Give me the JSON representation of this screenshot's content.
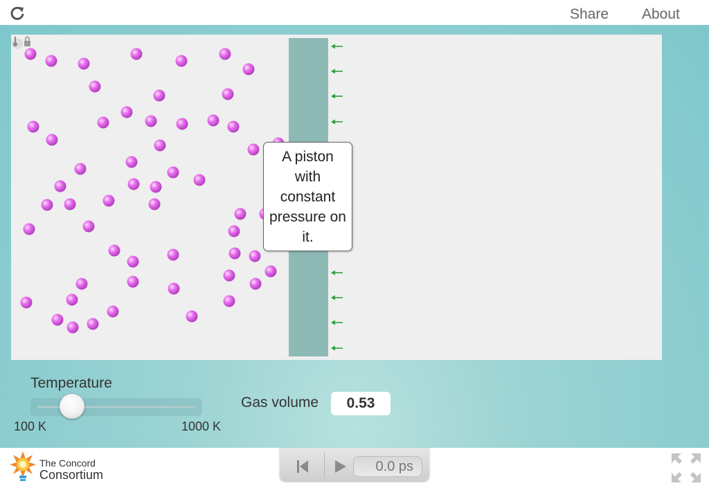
{
  "header": {
    "share_label": "Share",
    "about_label": "About"
  },
  "icons": {
    "reload": "reload-icon",
    "lock": "thermometer-lock-icon",
    "arrows": "left-arrow-icon",
    "step_back": "step-back-icon",
    "play": "play-icon",
    "fullscreen": "fullscreen-icon",
    "logo": "lightbulb-logo-icon"
  },
  "simulation": {
    "callout_text": "A piston with constant pressure on it."
  },
  "controls": {
    "temperature_label": "Temperature",
    "temperature_min": "100 K",
    "temperature_max": "1000 K",
    "temperature_level": 0.2,
    "gas_volume_label": "Gas volume",
    "gas_volume_value": "0.53"
  },
  "footer": {
    "logo_line1": "The Concord",
    "logo_line2": "Consortium",
    "time_display": "0.0 ps"
  },
  "colors": {
    "atom": "#e068e6",
    "piston": "#8ebab6",
    "arrow": "#2ea043",
    "background": "#7ec7cc"
  }
}
